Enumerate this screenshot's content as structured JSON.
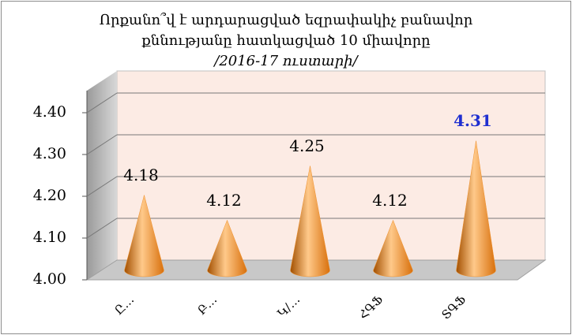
{
  "chart_data": {
    "type": "cone",
    "title": [
      "Որքանո՞վ է արդարացված եզրափակիչ բանավոր",
      "քննությանը հատկացված 10 միավորը",
      "/2016-17 ուստարի/"
    ],
    "categories": [
      "Ը…",
      "Բ…",
      "Կ/…",
      "ՀԳՖ",
      "ՏԳՖ"
    ],
    "values": [
      4.18,
      4.12,
      4.25,
      4.12,
      4.31
    ],
    "value_label_colors": [
      "#000000",
      "#000000",
      "#000000",
      "#000000",
      "#1f2fd0"
    ],
    "color": "#f0902a",
    "ylim": [
      4.0,
      4.4
    ],
    "yticks": [
      {
        "value": 4.0,
        "label": "4.00"
      },
      {
        "value": 4.1,
        "label": "4.10"
      },
      {
        "value": 4.2,
        "label": "4.20"
      },
      {
        "value": 4.3,
        "label": "4.30"
      },
      {
        "value": 4.4,
        "label": "4.40"
      }
    ],
    "grid": true
  }
}
